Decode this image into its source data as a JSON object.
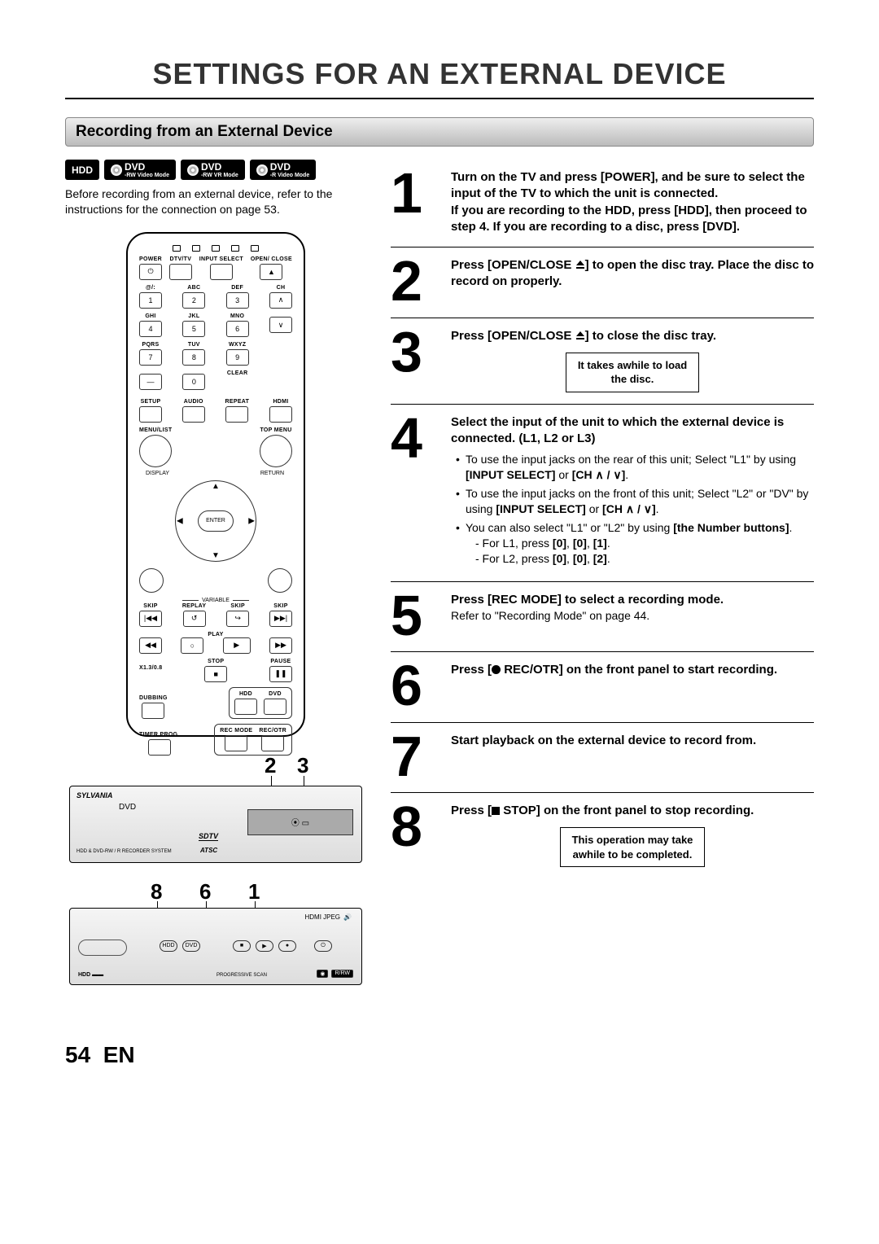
{
  "page_title": "SETTINGS FOR AN EXTERNAL DEVICE",
  "section_header": "Recording from an External Device",
  "badges": [
    "HDD",
    "DVD",
    "DVD",
    "DVD"
  ],
  "badge_subs": [
    "",
    "-RW Video Mode",
    "-RW VR Mode",
    "-R Video Mode"
  ],
  "intro": "Before recording from an external device, refer to the instructions for the connection on page 53.",
  "remote": {
    "row1": [
      "POWER",
      "DTV/TV",
      "INPUT SELECT",
      "OPEN/ CLOSE"
    ],
    "row_num_labels": [
      [
        "@/:",
        "ABC",
        "DEF"
      ],
      [
        "GHI",
        "JKL",
        "MNO"
      ],
      [
        "PQRS",
        "TUV",
        "WXYZ"
      ]
    ],
    "numbers": [
      [
        "1",
        "2",
        "3"
      ],
      [
        "4",
        "5",
        "6"
      ],
      [
        "7",
        "8",
        "9"
      ]
    ],
    "ch_label": "CH",
    "zero": "0",
    "clear": "CLEAR",
    "row_setup": [
      "SETUP",
      "AUDIO",
      "REPEAT",
      "HDMI"
    ],
    "menu_list": "MENU/LIST",
    "top_menu": "TOP MENU",
    "enter": "ENTER",
    "display": "DISPLAY",
    "return": "RETURN",
    "variable": "VARIABLE",
    "skip_replay": [
      "SKIP",
      "REPLAY",
      "SKIP",
      "SKIP"
    ],
    "play": "PLAY",
    "x13": "X1.3/0.8",
    "stop": "STOP",
    "pause": "PAUSE",
    "dubbing": "DUBBING",
    "hdd": "HDD",
    "dvd": "DVD",
    "timer": "TIMER PROG.",
    "recmode": "REC MODE",
    "recotr": "REC/OTR"
  },
  "callouts_top": [
    "2",
    "3"
  ],
  "callouts_bottom": [
    "8",
    "6",
    "1"
  ],
  "device_brand": "SYLVANIA",
  "device_sub": "HDD & DVD-RW / R RECORDER SYSTEM",
  "device_logo": "ATSC",
  "device_sdtv": "SDTV",
  "panel2_icons": "HDMI  JPEG",
  "panel2_btns": [
    "HDD",
    "DVD"
  ],
  "steps": [
    {
      "n": "1",
      "bold": "Turn on the TV and press [POWER], and be sure to select the input of the TV to which the unit is connected.\nIf you are recording to the HDD, press [HDD], then proceed to step 4. If you are recording to a disc, press [DVD]."
    },
    {
      "n": "2",
      "bold_pre": "Press [OPEN/CLOSE ",
      "bold_post": "] to open the disc tray. Place the disc to record on properly.",
      "eject": true
    },
    {
      "n": "3",
      "bold_pre": "Press [OPEN/CLOSE ",
      "bold_post": "] to close the disc tray.",
      "eject": true,
      "note": "It takes awhile to load\nthe disc."
    },
    {
      "n": "4",
      "bold": "Select the input of the unit to which the external device is connected. (L1, L2 or L3)",
      "bullets": [
        {
          "t": "To use the input jacks on the rear of this unit; Select \"L1\" by using ",
          "b": "[INPUT SELECT]",
          "t2": " or ",
          "b2": "[CH ∧ / ∨]",
          "t3": "."
        },
        {
          "t": "To use the input jacks on the front of this unit; Select \"L2\" or \"DV\" by using ",
          "b": "[INPUT SELECT]",
          "t2": " or ",
          "b2": "[CH ∧ / ∨]",
          "t3": "."
        },
        {
          "t": "You can also select \"L1\" or \"L2\" by using ",
          "b": "[the Number buttons]",
          "t2": ".",
          "subs": [
            "- For L1, press [0], [0], [1].",
            "- For L2, press [0], [0], [2]."
          ]
        }
      ]
    },
    {
      "n": "5",
      "bold": "Press [REC MODE] to select a recording mode.",
      "plain": "Refer to \"Recording Mode\" on page 44."
    },
    {
      "n": "6",
      "bold_pre": "Press [",
      "bold_post": " REC/OTR] on the front panel to start recording.",
      "rec": true
    },
    {
      "n": "7",
      "bold": "Start playback on the external device to record from."
    },
    {
      "n": "8",
      "bold_pre": "Press [",
      "bold_post": " STOP] on the front panel to stop recording.",
      "stop": true,
      "note": "This operation may take\nawhile to be completed."
    }
  ],
  "footer_page": "54",
  "footer_lang": "EN"
}
